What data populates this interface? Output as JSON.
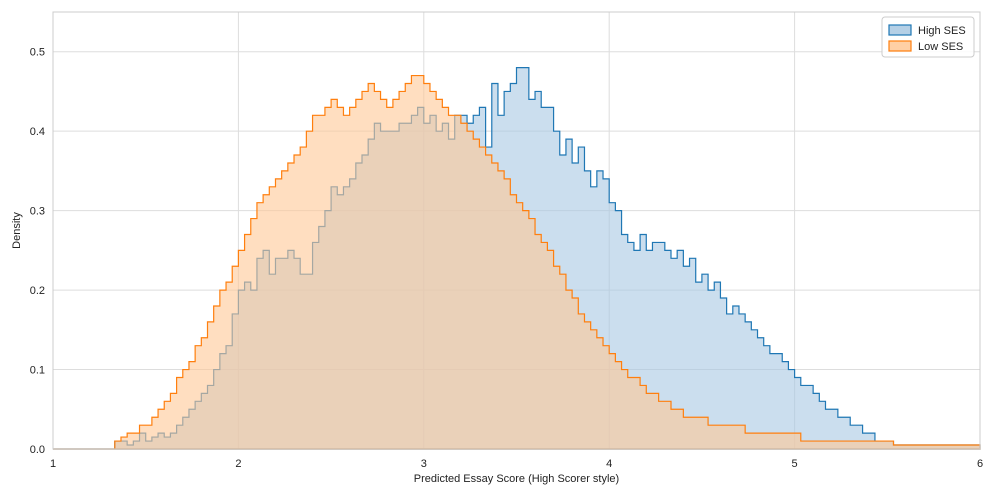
{
  "chart_data": {
    "type": "histogram",
    "title": "",
    "xlabel": "Predicted Essay Score (High Scorer style)",
    "ylabel": "Density",
    "xlim": [
      1,
      6
    ],
    "ylim": [
      0,
      0.55
    ],
    "grid": true,
    "legend_position": "top-right",
    "x_ticks": [
      "1",
      "2",
      "3",
      "4",
      "5",
      "6"
    ],
    "y_ticks": [
      "0.0",
      "0.1",
      "0.2",
      "0.3",
      "0.4",
      "0.5"
    ],
    "bin_start": 1.0,
    "bin_width": 0.0333,
    "series": [
      {
        "name": "High SES",
        "color": "#1f77b4",
        "fill": "#a8c8e2",
        "values": [
          0,
          0,
          0,
          0,
          0,
          0,
          0,
          0,
          0,
          0,
          0.01,
          0.01,
          0.005,
          0.01,
          0.02,
          0.01,
          0.015,
          0.02,
          0.015,
          0.02,
          0.03,
          0.04,
          0.05,
          0.06,
          0.07,
          0.08,
          0.1,
          0.12,
          0.13,
          0.17,
          0.2,
          0.21,
          0.2,
          0.24,
          0.25,
          0.22,
          0.24,
          0.24,
          0.25,
          0.24,
          0.22,
          0.22,
          0.26,
          0.28,
          0.3,
          0.33,
          0.32,
          0.33,
          0.34,
          0.36,
          0.37,
          0.39,
          0.41,
          0.4,
          0.4,
          0.4,
          0.41,
          0.41,
          0.42,
          0.43,
          0.41,
          0.42,
          0.4,
          0.41,
          0.39,
          0.42,
          0.42,
          0.41,
          0.42,
          0.43,
          0.38,
          0.46,
          0.42,
          0.45,
          0.46,
          0.48,
          0.48,
          0.44,
          0.45,
          0.43,
          0.43,
          0.4,
          0.37,
          0.39,
          0.36,
          0.38,
          0.35,
          0.33,
          0.35,
          0.34,
          0.31,
          0.3,
          0.27,
          0.26,
          0.25,
          0.27,
          0.25,
          0.26,
          0.26,
          0.25,
          0.24,
          0.25,
          0.23,
          0.24,
          0.21,
          0.22,
          0.2,
          0.21,
          0.19,
          0.17,
          0.18,
          0.17,
          0.16,
          0.15,
          0.14,
          0.13,
          0.12,
          0.12,
          0.11,
          0.1,
          0.09,
          0.08,
          0.08,
          0.07,
          0.06,
          0.05,
          0.05,
          0.04,
          0.04,
          0.03,
          0.03,
          0.02,
          0.02,
          0.01,
          0.01,
          0.01,
          0.005,
          0.005,
          0.005,
          0.005,
          0.005,
          0.005,
          0.005,
          0.005,
          0.005,
          0.005,
          0.005,
          0.005,
          0.005,
          0.005
        ]
      },
      {
        "name": "Low SES",
        "color": "#ff7f0e",
        "fill": "#ffc896",
        "values": [
          0,
          0,
          0,
          0,
          0,
          0,
          0,
          0,
          0,
          0,
          0.01,
          0.015,
          0.02,
          0.02,
          0.03,
          0.03,
          0.04,
          0.05,
          0.06,
          0.07,
          0.09,
          0.1,
          0.11,
          0.13,
          0.14,
          0.16,
          0.18,
          0.2,
          0.21,
          0.23,
          0.25,
          0.27,
          0.29,
          0.31,
          0.32,
          0.33,
          0.34,
          0.35,
          0.36,
          0.37,
          0.38,
          0.4,
          0.42,
          0.42,
          0.43,
          0.44,
          0.43,
          0.42,
          0.43,
          0.44,
          0.45,
          0.46,
          0.45,
          0.44,
          0.43,
          0.44,
          0.45,
          0.46,
          0.47,
          0.47,
          0.46,
          0.45,
          0.44,
          0.43,
          0.42,
          0.42,
          0.41,
          0.4,
          0.39,
          0.38,
          0.37,
          0.36,
          0.35,
          0.34,
          0.32,
          0.31,
          0.3,
          0.29,
          0.27,
          0.26,
          0.25,
          0.23,
          0.22,
          0.2,
          0.19,
          0.17,
          0.16,
          0.15,
          0.14,
          0.13,
          0.12,
          0.11,
          0.1,
          0.09,
          0.09,
          0.08,
          0.07,
          0.07,
          0.06,
          0.06,
          0.05,
          0.05,
          0.04,
          0.04,
          0.04,
          0.04,
          0.03,
          0.03,
          0.03,
          0.03,
          0.03,
          0.03,
          0.02,
          0.02,
          0.02,
          0.02,
          0.02,
          0.02,
          0.02,
          0.02,
          0.02,
          0.01,
          0.01,
          0.01,
          0.01,
          0.01,
          0.01,
          0.01,
          0.01,
          0.01,
          0.01,
          0.01,
          0.01,
          0.01,
          0.01,
          0.01,
          0.005,
          0.005,
          0.005,
          0.005,
          0.005,
          0.005,
          0.005,
          0.005,
          0.005,
          0.005,
          0.005,
          0.005,
          0.005,
          0.005
        ]
      }
    ]
  }
}
